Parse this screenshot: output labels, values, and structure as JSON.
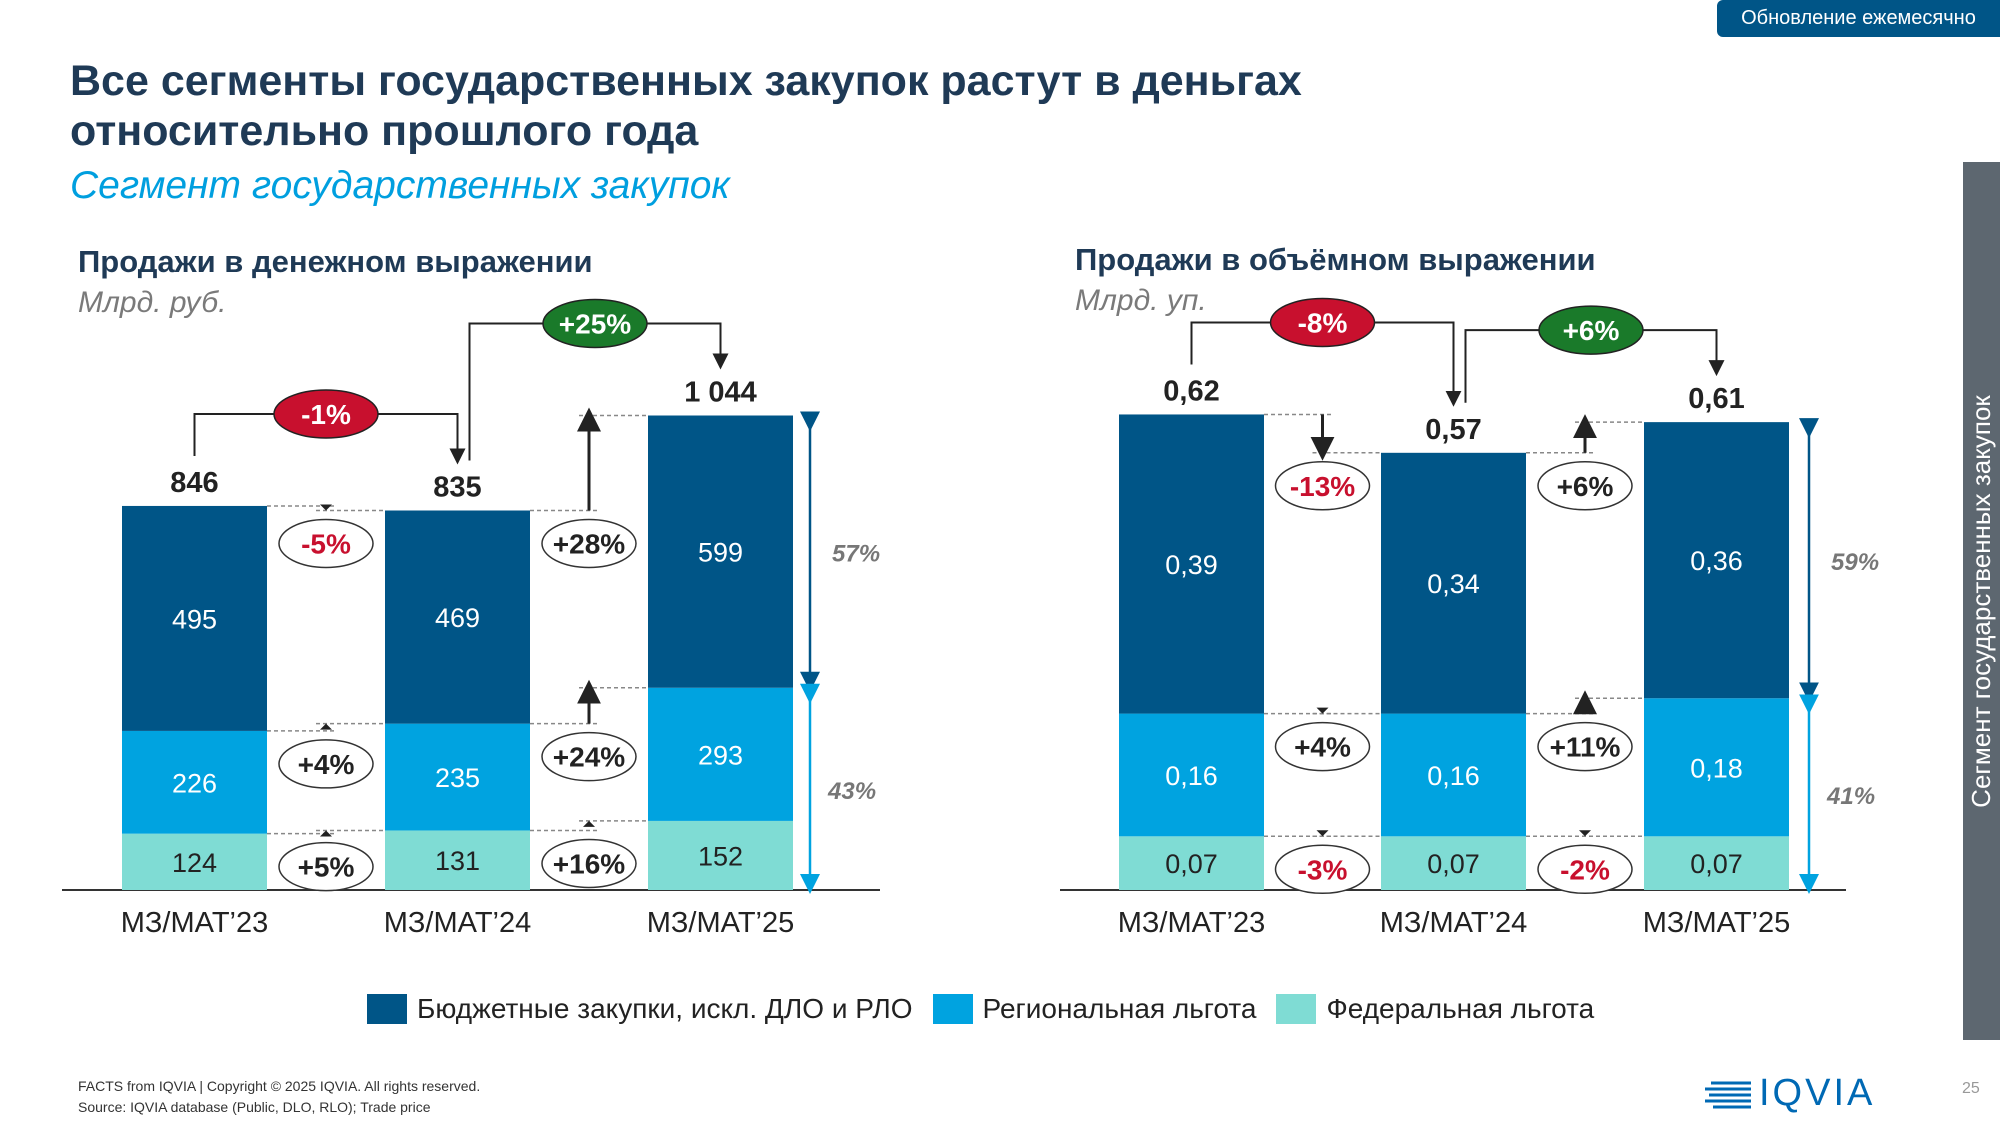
{
  "badge": "Обновление ежемесячно",
  "title_line1": "Все сегменты государственных закупок растут в деньгах",
  "title_line2": "относительно прошлого года",
  "subtitle": "Сегмент государственных закупок",
  "sidebar": "Сегмент государственных закупок",
  "legend": [
    "Бюджетные закупки, искл. ДЛО и РЛО",
    "Региональная льгота",
    "Федеральная льгота"
  ],
  "colors": {
    "budget": "#005587",
    "regional": "#00a3e0",
    "federal": "#7fdcd4",
    "pos": "#1a7a2a",
    "neg": "#c8102e"
  },
  "footer": {
    "line1": "FACTS from IQVIA | Copyright © 2025 IQVIA. All rights reserved.",
    "line2": "Source: IQVIA database (Public, DLO, RLO); Trade price"
  },
  "logo": "IQVIA",
  "page_number": "25",
  "chart_data": [
    {
      "type": "bar",
      "stacked": true,
      "title": "Продажи в денежном выражении",
      "unit": "Млрд. руб.",
      "categories": [
        "МЗ/MAT’23",
        "МЗ/MAT’24",
        "МЗ/MAT’25"
      ],
      "series": [
        {
          "name": "Федеральная льгота",
          "values": [
            124,
            131,
            152
          ],
          "labels": [
            "124",
            "131",
            "152"
          ]
        },
        {
          "name": "Региональная льгота",
          "values": [
            226,
            235,
            293
          ],
          "labels": [
            "226",
            "235",
            "293"
          ]
        },
        {
          "name": "Бюджетные закупки, искл. ДЛО и РЛО",
          "values": [
            495,
            469,
            599
          ],
          "labels": [
            "495",
            "469",
            "599"
          ]
        }
      ],
      "totals": [
        846,
        835,
        1044
      ],
      "total_labels": [
        "846",
        "835",
        "1 044"
      ],
      "total_changes": [
        "-1%",
        "+25%"
      ],
      "segment_changes": [
        [
          "+5%",
          "+4%",
          "-5%"
        ],
        [
          "+16%",
          "+24%",
          "+28%"
        ]
      ],
      "shares": {
        "budget": "57%",
        "rest": "43%"
      }
    },
    {
      "type": "bar",
      "stacked": true,
      "title": "Продажи в объёмном выражении",
      "unit": "Млрд. уп.",
      "categories": [
        "МЗ/MAT’23",
        "МЗ/MAT’24",
        "МЗ/MAT’25"
      ],
      "series": [
        {
          "name": "Федеральная льгота",
          "values": [
            0.07,
            0.07,
            0.07
          ],
          "labels": [
            "0,07",
            "0,07",
            "0,07"
          ]
        },
        {
          "name": "Региональная льгота",
          "values": [
            0.16,
            0.16,
            0.18
          ],
          "labels": [
            "0,16",
            "0,16",
            "0,18"
          ]
        },
        {
          "name": "Бюджетные закупки, искл. ДЛО и РЛО",
          "values": [
            0.39,
            0.34,
            0.36
          ],
          "labels": [
            "0,39",
            "0,34",
            "0,36"
          ]
        }
      ],
      "totals": [
        0.62,
        0.57,
        0.61
      ],
      "total_labels": [
        "0,62",
        "0,57",
        "0,61"
      ],
      "total_changes": [
        "-8%",
        "+6%"
      ],
      "segment_changes": [
        [
          "-3%",
          "+4%",
          "-13%"
        ],
        [
          "-2%",
          "+11%",
          "+6%"
        ]
      ],
      "shares": {
        "budget": "59%",
        "rest": "41%"
      }
    }
  ]
}
